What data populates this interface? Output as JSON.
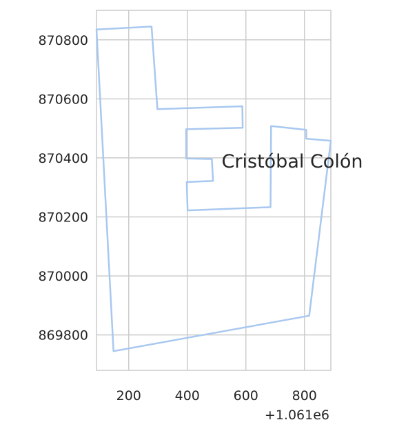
{
  "map": {
    "type": "polygon-outline",
    "region_label": "Cristóbal Colón",
    "x_offset_label": "+1.061e6",
    "xlim": [
      90,
      890
    ],
    "ylim": [
      869680,
      870900
    ],
    "x_ticks": [
      200,
      400,
      600,
      800
    ],
    "y_ticks": [
      869800,
      870000,
      870200,
      870400,
      870600,
      870800
    ],
    "x_tick_labels": [
      "200",
      "400",
      "600",
      "800"
    ],
    "y_tick_labels": [
      "869800",
      "870000",
      "870200",
      "870400",
      "870600",
      "870800"
    ],
    "grid": true,
    "colors": {
      "outline": "#a8c8f0",
      "grid": "#cccccc",
      "text": "#262626"
    },
    "boundary": [
      [
        90,
        870835
      ],
      [
        278,
        870845
      ],
      [
        298,
        870565
      ],
      [
        588,
        870575
      ],
      [
        589,
        870502
      ],
      [
        396,
        870497
      ],
      [
        396,
        870398
      ],
      [
        484,
        870396
      ],
      [
        488,
        870322
      ],
      [
        398,
        870318
      ],
      [
        401,
        870222
      ],
      [
        684,
        870233
      ],
      [
        686,
        870508
      ],
      [
        806,
        870495
      ],
      [
        806,
        870465
      ],
      [
        890,
        870458
      ],
      [
        816,
        869865
      ],
      [
        148,
        869745
      ],
      [
        90,
        870835
      ]
    ]
  }
}
